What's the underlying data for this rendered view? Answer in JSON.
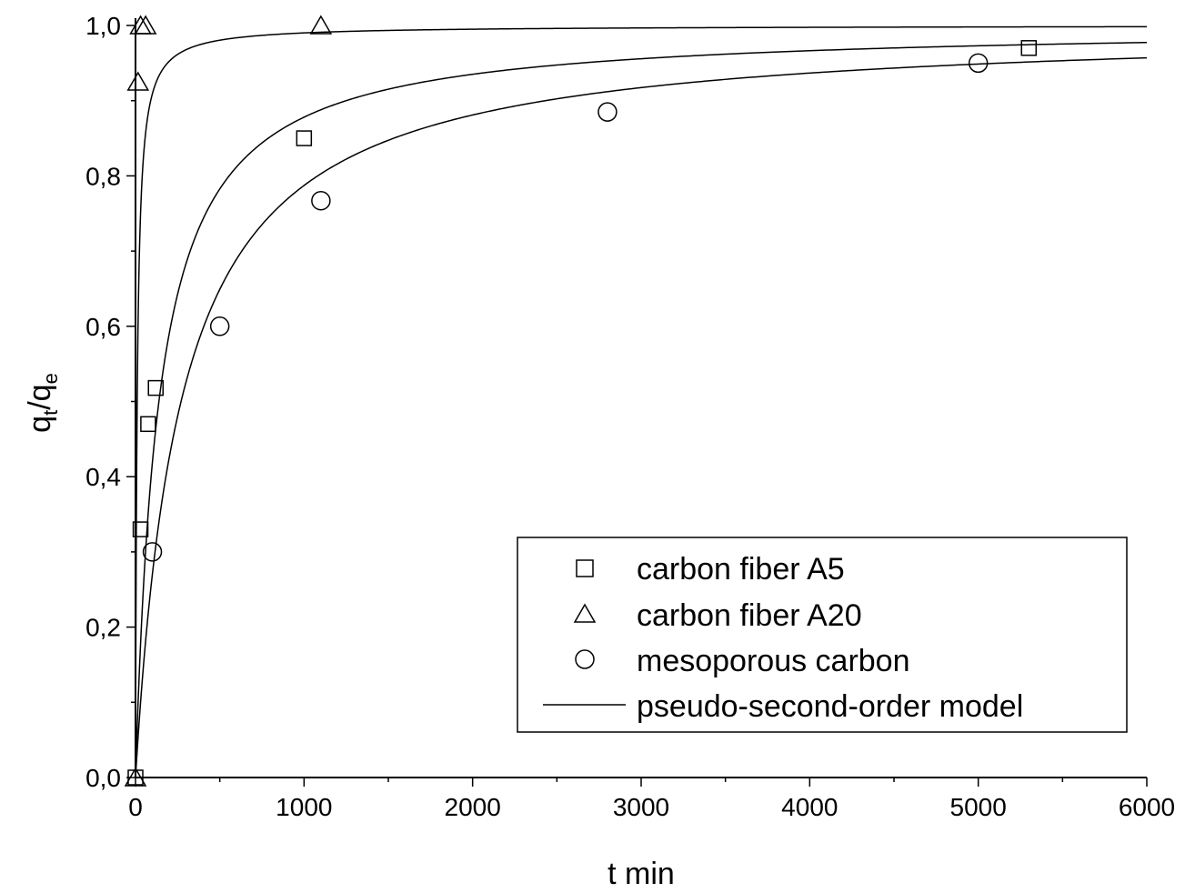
{
  "chart_data": {
    "type": "scatter",
    "xlabel": "t min",
    "ylabel": {
      "main": "q",
      "sub1": "t",
      "slash": "/",
      "main2": "q",
      "sub2": "e"
    },
    "xlim": [
      0,
      6000
    ],
    "ylim": [
      0,
      1.0
    ],
    "x_ticks": [
      0,
      1000,
      2000,
      3000,
      4000,
      5000,
      6000
    ],
    "x_tick_labels": [
      "0",
      "1000",
      "2000",
      "3000",
      "4000",
      "5000",
      "6000"
    ],
    "y_ticks": [
      0,
      0.2,
      0.4,
      0.6,
      0.8,
      1.0
    ],
    "y_tick_labels": [
      "0,0",
      "0,2",
      "0,4",
      "0,6",
      "0,8",
      "1,0"
    ],
    "grid": false,
    "legend_position": "bottom-right",
    "series": [
      {
        "name": "carbon fiber A5",
        "marker": "square",
        "points": [
          [
            0,
            0
          ],
          [
            30,
            0.33
          ],
          [
            75,
            0.47
          ],
          [
            120,
            0.518
          ],
          [
            1000,
            0.85
          ],
          [
            5300,
            0.97
          ]
        ]
      },
      {
        "name": "carbon fiber A20",
        "marker": "triangle",
        "points": [
          [
            0,
            0
          ],
          [
            15,
            0.925
          ],
          [
            30,
            1.0
          ],
          [
            60,
            1.0
          ],
          [
            1100,
            1.0
          ]
        ]
      },
      {
        "name": "mesoporous carbon",
        "marker": "circle",
        "points": [
          [
            100,
            0.3
          ],
          [
            500,
            0.6
          ],
          [
            1100,
            0.767
          ],
          [
            2800,
            0.885
          ],
          [
            5000,
            0.95
          ]
        ]
      },
      {
        "name": "pseudo-second-order model",
        "marker": "line",
        "curves": [
          {
            "qe": 1.0,
            "k": 0.1
          },
          {
            "qe": 1.0,
            "k": 0.0072
          },
          {
            "qe": 1.0,
            "k": 0.0037
          }
        ]
      }
    ]
  }
}
